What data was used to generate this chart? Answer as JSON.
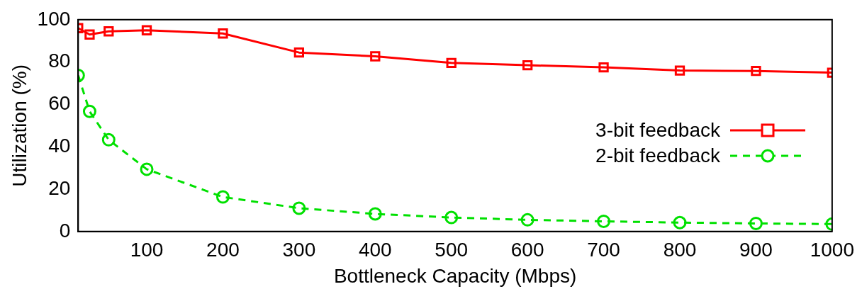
{
  "chart_data": {
    "type": "line",
    "xlabel": "Bottleneck Capacity (Mbps)",
    "ylabel": "Utilization (%)",
    "x": [
      10,
      25,
      50,
      100,
      200,
      300,
      400,
      500,
      600,
      700,
      800,
      900,
      1000
    ],
    "xlim": [
      10,
      1000
    ],
    "xticks": [
      100,
      200,
      300,
      400,
      500,
      600,
      700,
      800,
      900,
      1000
    ],
    "ylim": [
      0,
      100
    ],
    "yticks": [
      0,
      20,
      40,
      60,
      80,
      100
    ],
    "grid": false,
    "legend": "right",
    "series": [
      {
        "name": "3-bit feedback",
        "color": "#ff0000",
        "marker": "square",
        "line_style": "solid",
        "values": [
          96,
          93,
          94.5,
          95,
          93.5,
          84.5,
          82.7,
          79.6,
          78.5,
          77.5,
          76,
          75.8,
          75
        ]
      },
      {
        "name": "2-bit feedback",
        "color": "#00e000",
        "marker": "circle",
        "line_style": "dashed",
        "values": [
          73.7,
          56.7,
          43.3,
          29.4,
          16.3,
          11,
          8.3,
          6.6,
          5.5,
          4.8,
          4.2,
          3.8,
          3.5
        ]
      }
    ]
  }
}
